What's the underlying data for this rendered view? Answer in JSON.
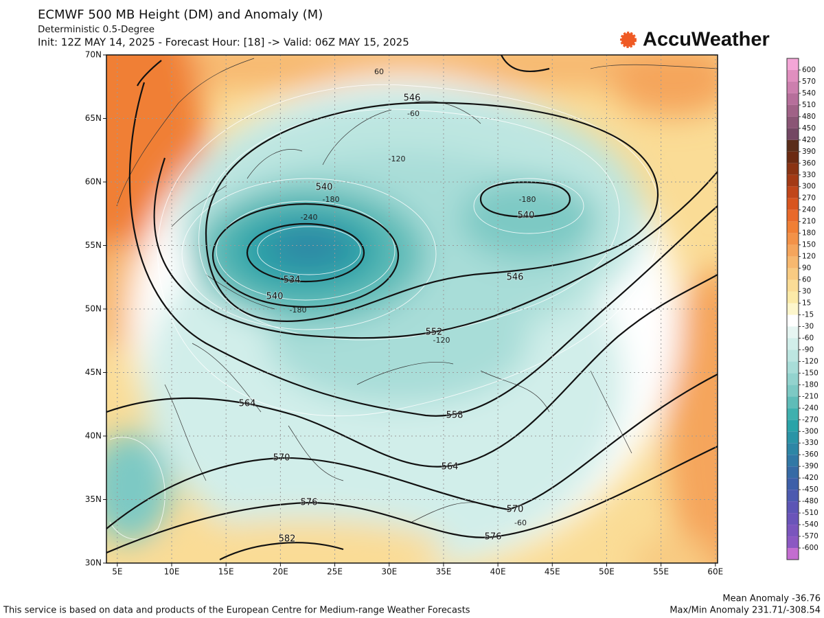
{
  "header": {
    "title": "ECMWF 500 MB Height (DM) and Anomaly (M)",
    "subtitle": "Deterministic 0.5-Degree",
    "init": "Init: 12Z MAY 14, 2025 - Forecast Hour: [18] -> Valid: 06Z MAY 15, 2025"
  },
  "logo": "AccuWeather",
  "map": {
    "lat_ticks": [
      {
        "value": 70,
        "label": "70N"
      },
      {
        "value": 65,
        "label": "65N"
      },
      {
        "value": 60,
        "label": "60N"
      },
      {
        "value": 55,
        "label": "55N"
      },
      {
        "value": 50,
        "label": "50N"
      },
      {
        "value": 45,
        "label": "45N"
      },
      {
        "value": 40,
        "label": "40N"
      },
      {
        "value": 35,
        "label": "35N"
      },
      {
        "value": 30,
        "label": "30N"
      }
    ],
    "lon_ticks": [
      {
        "value": 5,
        "label": "5E"
      },
      {
        "value": 10,
        "label": "10E"
      },
      {
        "value": 15,
        "label": "15E"
      },
      {
        "value": 20,
        "label": "20E"
      },
      {
        "value": 25,
        "label": "25E"
      },
      {
        "value": 30,
        "label": "30E"
      },
      {
        "value": 35,
        "label": "35E"
      },
      {
        "value": 40,
        "label": "40E"
      },
      {
        "value": 45,
        "label": "45E"
      },
      {
        "value": 50,
        "label": "50E"
      },
      {
        "value": 55,
        "label": "55E"
      },
      {
        "value": 60,
        "label": "60E"
      }
    ],
    "height_labels": [
      546,
      540,
      534,
      540,
      540,
      546,
      552,
      564,
      558,
      570,
      564,
      576,
      570,
      582,
      576
    ],
    "anomaly_labels": [
      60,
      -60,
      -120,
      -180,
      -240,
      -180,
      -180,
      -120,
      -60
    ]
  },
  "colorbar": {
    "levels": [
      600,
      570,
      540,
      510,
      480,
      450,
      420,
      390,
      360,
      330,
      300,
      270,
      240,
      210,
      180,
      150,
      120,
      90,
      60,
      30,
      15,
      -15,
      -30,
      -60,
      -90,
      -120,
      -150,
      -180,
      -210,
      -240,
      -270,
      -300,
      -330,
      -360,
      -390,
      -420,
      -450,
      -480,
      -510,
      -540,
      -570,
      -600
    ],
    "colors": [
      "#f4a6d7",
      "#e08fbf",
      "#cc7fae",
      "#b66f9b",
      "#a06287",
      "#8a5575",
      "#734763",
      "#5a2d1a",
      "#6b2a12",
      "#8a3313",
      "#a33a15",
      "#c0461a",
      "#d8551f",
      "#e8692a",
      "#f07f35",
      "#f39248",
      "#f5a55c",
      "#f7b86f",
      "#f8cb82",
      "#fadc96",
      "#fbeaa8",
      "#fdf6cc",
      "#ffffff",
      "#e6f5f2",
      "#d1eeea",
      "#bde6e1",
      "#a8ddd8",
      "#93d3ce",
      "#7dc9c4",
      "#5fbcb8",
      "#3fb0ae",
      "#2aa3a8",
      "#2a94a6",
      "#2d86a5",
      "#3178a5",
      "#366aa5",
      "#3d5fa8",
      "#4c5aaf",
      "#5c55b5",
      "#6a54b9",
      "#7a55bd",
      "#8b58c2",
      "#c36dd0"
    ]
  },
  "footer": {
    "mean": "Mean Anomaly -36.76",
    "maxmin": "Max/Min Anomaly 231.71/-308.54",
    "credit": "This service is based on data and products of the European Centre for Medium-range Weather Forecasts"
  }
}
